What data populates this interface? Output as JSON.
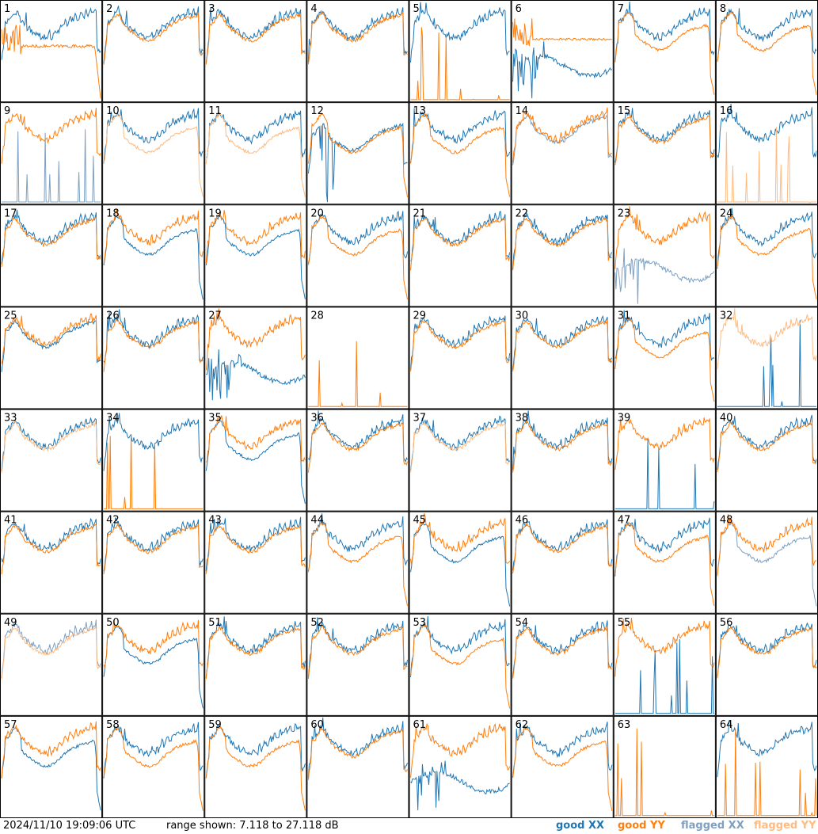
{
  "footer": {
    "timestamp": "2024/11/10 19:09:06 UTC",
    "range_text": "range shown: 7.118 to 27.118 dB",
    "legend": {
      "good_xx": "good XX",
      "good_yy": "good YY",
      "flagged_xx": "flagged XX",
      "flagged_yy": "flagged YY"
    }
  },
  "colors": {
    "good_xx": "#1f77b4",
    "good_yy": "#ff7f0e",
    "flagged_xx": "#7fa0c0",
    "flagged_yy": "#ffbb80"
  },
  "chart_data": {
    "type": "line",
    "grid_rows": 8,
    "grid_cols": 8,
    "ylim": [
      7.118,
      27.118
    ],
    "yunit": "dB",
    "panels": [
      {
        "label": "1",
        "xx": "good",
        "yy": "good",
        "shape_xx": "normal",
        "shape_yy": "dropout_low"
      },
      {
        "label": "2",
        "xx": "good",
        "yy": "good",
        "shape_xx": "normal",
        "shape_yy": "similar"
      },
      {
        "label": "3",
        "xx": "good",
        "yy": "good",
        "shape_xx": "normal",
        "shape_yy": "similar"
      },
      {
        "label": "4",
        "xx": "good",
        "yy": "good",
        "shape_xx": "normal",
        "shape_yy": "similar"
      },
      {
        "label": "5",
        "xx": "good",
        "yy": "good",
        "shape_xx": "normal",
        "shape_yy": "spikes"
      },
      {
        "label": "6",
        "xx": "good",
        "yy": "good",
        "shape_xx": "noisy_low",
        "shape_yy": "flat_high"
      },
      {
        "label": "7",
        "xx": "good",
        "yy": "good",
        "shape_xx": "normal",
        "shape_yy": "lower"
      },
      {
        "label": "8",
        "xx": "good",
        "yy": "good",
        "shape_xx": "normal",
        "shape_yy": "lower"
      },
      {
        "label": "9",
        "xx": "flagged",
        "yy": "good",
        "shape_xx": "spikes",
        "shape_yy": "normal"
      },
      {
        "label": "10",
        "xx": "good",
        "yy": "flagged",
        "shape_xx": "normal",
        "shape_yy": "lower"
      },
      {
        "label": "11",
        "xx": "good",
        "yy": "flagged",
        "shape_xx": "normal",
        "shape_yy": "lower"
      },
      {
        "label": "12",
        "xx": "good",
        "yy": "good",
        "shape_xx": "noisy_mid",
        "shape_yy": "lower"
      },
      {
        "label": "13",
        "xx": "good",
        "yy": "good",
        "shape_xx": "normal",
        "shape_yy": "lower"
      },
      {
        "label": "14",
        "xx": "flagged",
        "yy": "good",
        "shape_xx": "similar",
        "shape_yy": "normal"
      },
      {
        "label": "15",
        "xx": "good",
        "yy": "good",
        "shape_xx": "normal",
        "shape_yy": "similar"
      },
      {
        "label": "16",
        "xx": "good",
        "yy": "flagged",
        "shape_xx": "normal",
        "shape_yy": "spikes"
      },
      {
        "label": "17",
        "xx": "good",
        "yy": "good",
        "shape_xx": "normal",
        "shape_yy": "similar"
      },
      {
        "label": "18",
        "xx": "good",
        "yy": "good",
        "shape_xx": "lower",
        "shape_yy": "normal"
      },
      {
        "label": "19",
        "xx": "good",
        "yy": "good",
        "shape_xx": "lower",
        "shape_yy": "normal"
      },
      {
        "label": "20",
        "xx": "good",
        "yy": "good",
        "shape_xx": "normal",
        "shape_yy": "lower"
      },
      {
        "label": "21",
        "xx": "good",
        "yy": "good",
        "shape_xx": "normal",
        "shape_yy": "similar"
      },
      {
        "label": "22",
        "xx": "good",
        "yy": "good",
        "shape_xx": "normal",
        "shape_yy": "similar"
      },
      {
        "label": "23",
        "xx": "flagged",
        "yy": "good",
        "shape_xx": "noisy_low",
        "shape_yy": "normal"
      },
      {
        "label": "24",
        "xx": "good",
        "yy": "good",
        "shape_xx": "normal",
        "shape_yy": "lower"
      },
      {
        "label": "25",
        "xx": "good",
        "yy": "good",
        "shape_xx": "similar",
        "shape_yy": "normal"
      },
      {
        "label": "26",
        "xx": "good",
        "yy": "good",
        "shape_xx": "normal",
        "shape_yy": "similar"
      },
      {
        "label": "27",
        "xx": "good",
        "yy": "good",
        "shape_xx": "noisy_low",
        "shape_yy": "normal"
      },
      {
        "label": "28",
        "xx": "none",
        "yy": "good",
        "shape_xx": "none",
        "shape_yy": "spikes"
      },
      {
        "label": "29",
        "xx": "good",
        "yy": "good",
        "shape_xx": "normal",
        "shape_yy": "similar"
      },
      {
        "label": "30",
        "xx": "good",
        "yy": "good",
        "shape_xx": "normal",
        "shape_yy": "similar"
      },
      {
        "label": "31",
        "xx": "good",
        "yy": "good",
        "shape_xx": "normal",
        "shape_yy": "lower"
      },
      {
        "label": "32",
        "xx": "good",
        "yy": "flagged",
        "shape_xx": "spikes",
        "shape_yy": "normal"
      },
      {
        "label": "33",
        "xx": "good",
        "yy": "flagged",
        "shape_xx": "normal",
        "shape_yy": "similar"
      },
      {
        "label": "34",
        "xx": "good",
        "yy": "good",
        "shape_xx": "normal",
        "shape_yy": "spikes"
      },
      {
        "label": "35",
        "xx": "good",
        "yy": "good",
        "shape_xx": "lower",
        "shape_yy": "normal"
      },
      {
        "label": "36",
        "xx": "good",
        "yy": "good",
        "shape_xx": "normal",
        "shape_yy": "similar"
      },
      {
        "label": "37",
        "xx": "good",
        "yy": "flagged",
        "shape_xx": "normal",
        "shape_yy": "similar"
      },
      {
        "label": "38",
        "xx": "good",
        "yy": "good",
        "shape_xx": "normal",
        "shape_yy": "similar"
      },
      {
        "label": "39",
        "xx": "good",
        "yy": "good",
        "shape_xx": "spikes",
        "shape_yy": "normal"
      },
      {
        "label": "40",
        "xx": "good",
        "yy": "good",
        "shape_xx": "normal",
        "shape_yy": "similar"
      },
      {
        "label": "41",
        "xx": "good",
        "yy": "good",
        "shape_xx": "normal",
        "shape_yy": "similar"
      },
      {
        "label": "42",
        "xx": "good",
        "yy": "good",
        "shape_xx": "normal",
        "shape_yy": "similar"
      },
      {
        "label": "43",
        "xx": "good",
        "yy": "good",
        "shape_xx": "normal",
        "shape_yy": "similar"
      },
      {
        "label": "44",
        "xx": "good",
        "yy": "good",
        "shape_xx": "normal",
        "shape_yy": "lower"
      },
      {
        "label": "45",
        "xx": "good",
        "yy": "good",
        "shape_xx": "lower",
        "shape_yy": "normal"
      },
      {
        "label": "46",
        "xx": "good",
        "yy": "good",
        "shape_xx": "normal",
        "shape_yy": "similar"
      },
      {
        "label": "47",
        "xx": "good",
        "yy": "good",
        "shape_xx": "normal",
        "shape_yy": "lower"
      },
      {
        "label": "48",
        "xx": "flagged",
        "yy": "good",
        "shape_xx": "lower",
        "shape_yy": "normal"
      },
      {
        "label": "49",
        "xx": "flagged",
        "yy": "flagged",
        "shape_xx": "normal",
        "shape_yy": "similar"
      },
      {
        "label": "50",
        "xx": "good",
        "yy": "good",
        "shape_xx": "lower",
        "shape_yy": "normal"
      },
      {
        "label": "51",
        "xx": "good",
        "yy": "good",
        "shape_xx": "normal",
        "shape_yy": "similar"
      },
      {
        "label": "52",
        "xx": "good",
        "yy": "good",
        "shape_xx": "normal",
        "shape_yy": "similar"
      },
      {
        "label": "53",
        "xx": "good",
        "yy": "good",
        "shape_xx": "normal",
        "shape_yy": "lower"
      },
      {
        "label": "54",
        "xx": "good",
        "yy": "good",
        "shape_xx": "normal",
        "shape_yy": "similar"
      },
      {
        "label": "55",
        "xx": "good",
        "yy": "good",
        "shape_xx": "spikes",
        "shape_yy": "normal"
      },
      {
        "label": "56",
        "xx": "good",
        "yy": "good",
        "shape_xx": "normal",
        "shape_yy": "similar"
      },
      {
        "label": "57",
        "xx": "good",
        "yy": "good",
        "shape_xx": "lower",
        "shape_yy": "normal"
      },
      {
        "label": "58",
        "xx": "good",
        "yy": "good",
        "shape_xx": "normal",
        "shape_yy": "lower"
      },
      {
        "label": "59",
        "xx": "good",
        "yy": "good",
        "shape_xx": "normal",
        "shape_yy": "lower"
      },
      {
        "label": "60",
        "xx": "good",
        "yy": "good",
        "shape_xx": "normal",
        "shape_yy": "similar"
      },
      {
        "label": "61",
        "xx": "good",
        "yy": "good",
        "shape_xx": "noisy_low",
        "shape_yy": "normal"
      },
      {
        "label": "62",
        "xx": "good",
        "yy": "good",
        "shape_xx": "normal",
        "shape_yy": "lower"
      },
      {
        "label": "63",
        "xx": "none",
        "yy": "good",
        "shape_xx": "none",
        "shape_yy": "spikes"
      },
      {
        "label": "64",
        "xx": "good",
        "yy": "good",
        "shape_xx": "normal",
        "shape_yy": "spikes"
      }
    ]
  }
}
